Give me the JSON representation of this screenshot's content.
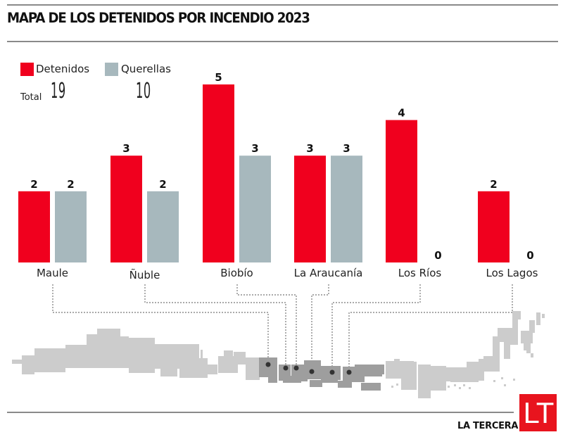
{
  "header": {
    "title": "MAPA DE LOS DETENIDOS POR INCENDIO 2023"
  },
  "legend": {
    "items": [
      {
        "label": "Detenidos",
        "color": "#f0001e"
      },
      {
        "label": "Querellas",
        "color": "#a7b8bd"
      }
    ],
    "total_label": "Total",
    "totals": {
      "detenidos": "19",
      "querellas": "10"
    }
  },
  "chart_data": {
    "type": "bar",
    "title": "MAPA DE LOS DETENIDOS POR INCENDIO 2023",
    "xlabel": "",
    "ylabel": "",
    "ylim": [
      0,
      5
    ],
    "grid": false,
    "legend_position": "top-left",
    "categories": [
      "Maule",
      "Ñuble",
      "Biobío",
      "La Araucanía",
      "Los Ríos",
      "Los Lagos"
    ],
    "series": [
      {
        "name": "Detenidos",
        "color": "#f0001e",
        "values": [
          2,
          3,
          5,
          3,
          4,
          2
        ]
      },
      {
        "name": "Querellas",
        "color": "#a7b8bd",
        "values": [
          2,
          2,
          3,
          3,
          0,
          0
        ]
      }
    ],
    "totals": {
      "Detenidos": 19,
      "Querellas": 10
    }
  },
  "map": {
    "description": "Chile regions map (rotated), highlighted regions with markers",
    "base_color": "#cccccc",
    "highlight_color": "#9e9e9e",
    "marker_color": "#333333"
  },
  "footer": {
    "brand_name": "LA TERCERA",
    "logo_text": "LT",
    "logo_color": "#e8141e"
  }
}
